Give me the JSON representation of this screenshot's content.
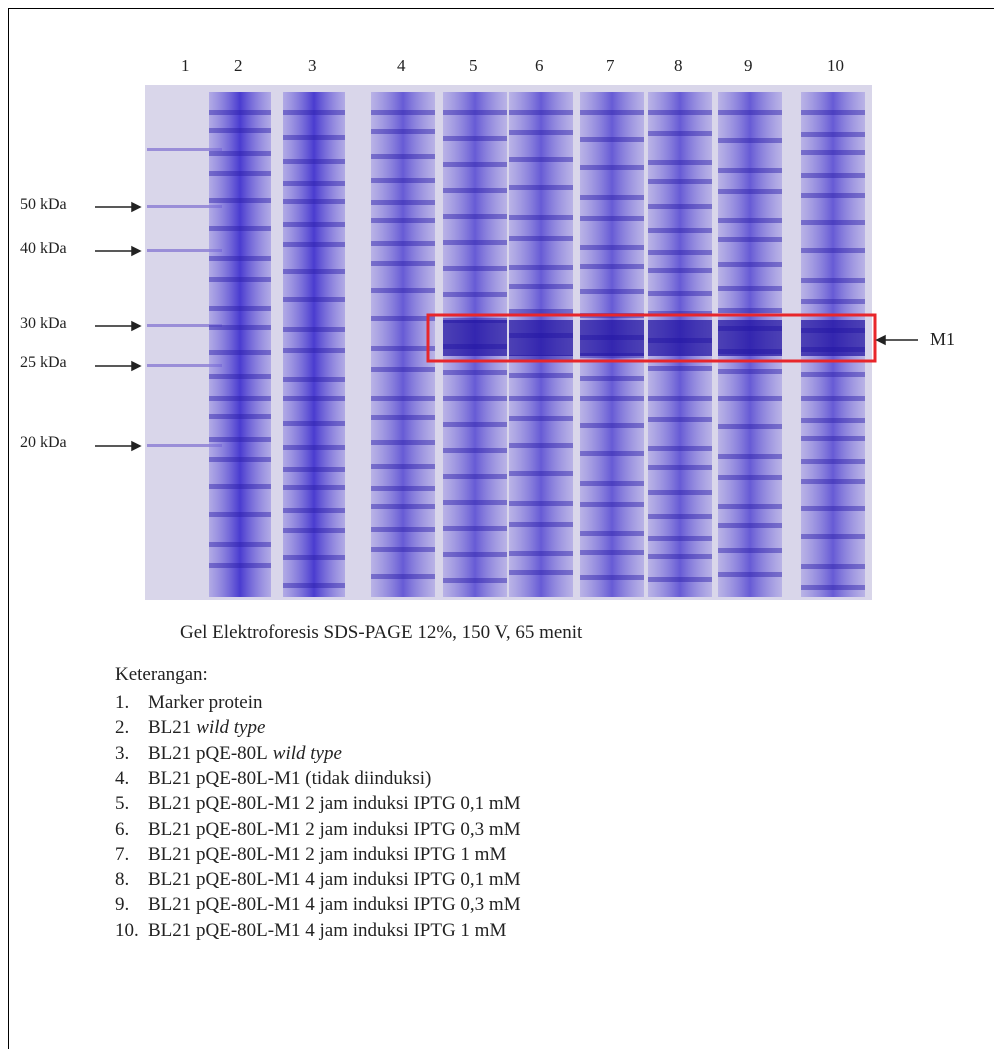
{
  "figure": {
    "lane_numbers": [
      "1",
      "2",
      "3",
      "4",
      "5",
      "6",
      "7",
      "8",
      "9",
      "10"
    ],
    "markers": [
      "50 kDa",
      "40 kDa",
      "30 kDa",
      "25 kDa",
      "20 kDa"
    ],
    "band_label": "M1",
    "caption": "Gel Elektroforesis SDS-PAGE 12%, 150 V, 65 menit"
  },
  "legend": {
    "heading": "Keterangan:",
    "items": [
      {
        "number": "1.",
        "text": "Marker protein"
      },
      {
        "number": "2.",
        "text": "BL21",
        "italic": "wild type"
      },
      {
        "number": "3.",
        "text": "BL21 pQE-80L",
        "italic": "wild type"
      },
      {
        "number": "4.",
        "text": "BL21 pQE-80L-M1 (tidak diinduksi)"
      },
      {
        "number": "5.",
        "text": "BL21 pQE-80L-M1 2 jam induksi IPTG 0,1 mM"
      },
      {
        "number": "6.",
        "text": "BL21 pQE-80L-M1 2 jam induksi IPTG 0,3 mM"
      },
      {
        "number": "7.",
        "text": "BL21 pQE-80L-M1 2 jam induksi IPTG 1 mM"
      },
      {
        "number": "8.",
        "text": "BL21 pQE-80L-M1 4 jam induksi IPTG 0,1 mM"
      },
      {
        "number": "9.",
        "text": "BL21 pQE-80L-M1 4 jam induksi IPTG 0,3 mM"
      },
      {
        "number": "10.",
        "text": "BL21 pQE-80L-M1 4 jam induksi IPTG 1 mM"
      }
    ]
  }
}
